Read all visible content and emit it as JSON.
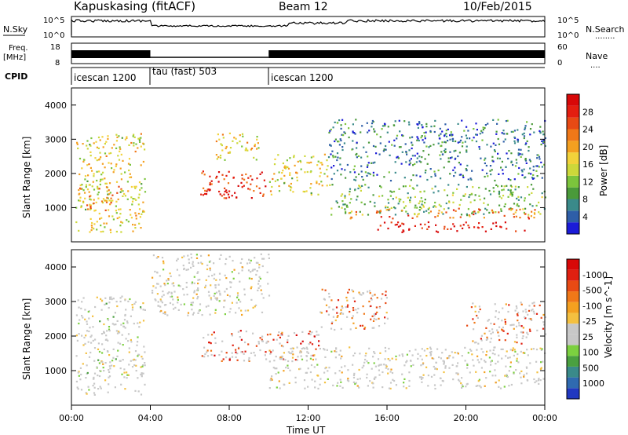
{
  "header": {
    "station": "Kapuskasing (fitACF)",
    "beam": "Beam 12",
    "date": "10/Feb/2015"
  },
  "strips": {
    "nsky_label": "N.Sky",
    "nsearch_label": "N.Search",
    "nsearch_dots": "........",
    "freq_label_1": "Freq.",
    "freq_label_2": "[MHz]",
    "nave_label": "Nave",
    "nave_dots": "....",
    "cpid_label": "CPID",
    "left_ticks_nsky": [
      "10^5",
      "10^0"
    ],
    "right_ticks_nsearch": [
      "10^5",
      "10^0"
    ],
    "left_ticks_freq": [
      "18",
      "8"
    ],
    "right_ticks_nave": [
      "60",
      "0"
    ],
    "cpid_segments": [
      {
        "label": "icescan 1200",
        "start_hour": 0,
        "end_hour": 4
      },
      {
        "label": "tau (fast) 503",
        "start_hour": 4,
        "end_hour": 10
      },
      {
        "label": "icescan 1200",
        "start_hour": 10,
        "end_hour": 24
      }
    ]
  },
  "chart_data": [
    {
      "type": "heatmap",
      "name": "power-panel",
      "title": "",
      "xlabel": "Time UT",
      "ylabel": "Slant Range [km]",
      "xlim_hours": [
        0,
        24
      ],
      "ylim_km": [
        0,
        4500
      ],
      "yticks": [
        1000,
        2000,
        3000,
        4000
      ],
      "colorbar": {
        "label": "Power [dB]",
        "tick_labels": [
          "4",
          "8",
          "12",
          "16",
          "20",
          "24",
          "28"
        ],
        "colors": [
          "#1b1bd8",
          "#2e5ea8",
          "#3a8a8a",
          "#4a9a3a",
          "#7cc43c",
          "#cdd83a",
          "#f2d23a",
          "#f4a020",
          "#f07818",
          "#e84a14",
          "#e41e10",
          "#d80808"
        ]
      },
      "regions": [
        {
          "t0": 0.2,
          "t1": 3.7,
          "r0": 300,
          "r1": 3200,
          "level": 0.5
        },
        {
          "t0": 0.3,
          "t1": 2.5,
          "r0": 900,
          "r1": 1700,
          "level": 0.65
        },
        {
          "t0": 6.5,
          "t1": 9.8,
          "r0": 1300,
          "r1": 2100,
          "level": 0.85
        },
        {
          "t0": 6.8,
          "t1": 8.0,
          "r0": 1350,
          "r1": 1600,
          "level": 1.0
        },
        {
          "t0": 7.2,
          "t1": 9.5,
          "r0": 2400,
          "r1": 3200,
          "level": 0.55
        },
        {
          "t0": 10.0,
          "t1": 13.0,
          "r0": 1400,
          "r1": 2600,
          "level": 0.5
        },
        {
          "t0": 13.0,
          "t1": 24.0,
          "r0": 800,
          "r1": 1700,
          "level": 0.35
        },
        {
          "t0": 14.0,
          "t1": 23.5,
          "r0": 700,
          "r1": 1000,
          "level": 0.7
        },
        {
          "t0": 15.5,
          "t1": 23.0,
          "r0": 300,
          "r1": 600,
          "level": 0.95
        },
        {
          "t0": 13.0,
          "t1": 24.0,
          "r0": 1800,
          "r1": 3600,
          "level": 0.2
        }
      ]
    },
    {
      "type": "heatmap",
      "name": "velocity-panel",
      "title": "",
      "xlabel": "Time UT",
      "ylabel": "Slant Range [km]",
      "xlim_hours": [
        0,
        24
      ],
      "ylim_km": [
        0,
        4500
      ],
      "yticks": [
        1000,
        2000,
        3000,
        4000
      ],
      "xticks": [
        "00:00",
        "04:00",
        "08:00",
        "12:00",
        "16:00",
        "20:00",
        "00:00"
      ],
      "colorbar": {
        "label": "Velocity [m s^-1]",
        "tick_labels": [
          "1000",
          "500",
          "100",
          "25",
          "-25",
          "-100",
          "-500",
          "-1000"
        ],
        "colors": [
          "#2038c0",
          "#2f6ab0",
          "#3a8a8a",
          "#4aa040",
          "#7cd040",
          "#c8c8c8",
          "#c8c8c8",
          "#f4c040",
          "#f4a020",
          "#f07818",
          "#e84a14",
          "#e02010",
          "#d80808"
        ]
      },
      "regions": [
        {
          "t0": 0.2,
          "t1": 3.7,
          "r0": 300,
          "r1": 3200,
          "level": 0.45
        },
        {
          "t0": 4.0,
          "t1": 10.0,
          "r0": 2600,
          "r1": 4400,
          "level": 0.5
        },
        {
          "t0": 6.5,
          "t1": 12.5,
          "r0": 1300,
          "r1": 2200,
          "level": 0.85
        },
        {
          "t0": 10.0,
          "t1": 24.0,
          "r0": 500,
          "r1": 1700,
          "level": 0.5
        },
        {
          "t0": 12.5,
          "t1": 16.0,
          "r0": 2200,
          "r1": 3400,
          "level": 0.75
        },
        {
          "t0": 20.0,
          "t1": 24.0,
          "r0": 1800,
          "r1": 3000,
          "level": 0.75
        }
      ]
    }
  ]
}
